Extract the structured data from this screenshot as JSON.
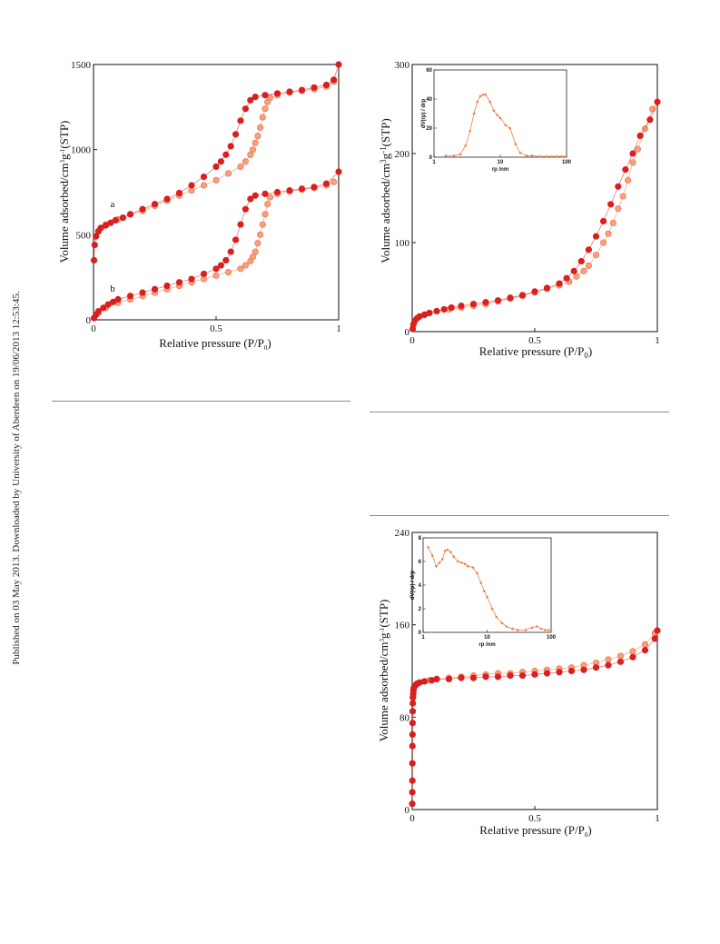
{
  "side_note": "Published on 03 May 2013. Downloaded by University of Aberdeen on 19/06/2013 12:53:45.",
  "colors": {
    "adsorption": "#d91f1f",
    "desorption": "#ef7a55",
    "inset": "#f08050",
    "axis": "#222222",
    "rule": "#8a8a8a"
  },
  "chart_data": [
    {
      "type": "scatter",
      "xlabel": "Relative pressure (P/P0)",
      "ylabel": "Volume adsorbed/cm3g-1(STP)",
      "xlim": [
        0,
        1
      ],
      "ylim": [
        0,
        1500
      ],
      "xticks": [
        "0",
        "0.5",
        "1"
      ],
      "yticks": [
        "0",
        "500",
        "1000",
        "1500"
      ],
      "annotations": [
        "a",
        "b"
      ],
      "series": [
        {
          "name": "a",
          "branch": "adsorption",
          "x": [
            0.002,
            0.005,
            0.01,
            0.02,
            0.03,
            0.05,
            0.07,
            0.09,
            0.12,
            0.15,
            0.2,
            0.25,
            0.3,
            0.35,
            0.4,
            0.45,
            0.5,
            0.52,
            0.54,
            0.56,
            0.58,
            0.6,
            0.62,
            0.64,
            0.66,
            0.7,
            0.75,
            0.8,
            0.85,
            0.9,
            0.95,
            0.98,
            1.0
          ],
          "y": [
            350,
            440,
            490,
            520,
            540,
            555,
            570,
            585,
            600,
            620,
            650,
            680,
            710,
            745,
            790,
            840,
            900,
            930,
            970,
            1020,
            1090,
            1170,
            1240,
            1290,
            1310,
            1320,
            1330,
            1340,
            1350,
            1365,
            1380,
            1410,
            1500
          ]
        },
        {
          "name": "a",
          "branch": "desorption",
          "x": [
            0.98,
            0.95,
            0.9,
            0.85,
            0.8,
            0.75,
            0.72,
            0.71,
            0.7,
            0.69,
            0.68,
            0.67,
            0.66,
            0.65,
            0.64,
            0.62,
            0.6,
            0.55,
            0.5,
            0.45,
            0.4,
            0.35,
            0.3,
            0.25,
            0.2,
            0.15,
            0.1,
            0.05,
            0.02
          ],
          "y": [
            1400,
            1370,
            1355,
            1345,
            1335,
            1320,
            1305,
            1280,
            1240,
            1190,
            1130,
            1080,
            1040,
            1000,
            970,
            930,
            900,
            860,
            820,
            790,
            760,
            730,
            700,
            670,
            640,
            620,
            590,
            560,
            520
          ]
        },
        {
          "name": "b",
          "branch": "adsorption",
          "x": [
            0.002,
            0.01,
            0.02,
            0.04,
            0.06,
            0.08,
            0.1,
            0.15,
            0.2,
            0.25,
            0.3,
            0.35,
            0.4,
            0.45,
            0.5,
            0.52,
            0.54,
            0.56,
            0.58,
            0.6,
            0.62,
            0.64,
            0.66,
            0.7,
            0.75,
            0.8,
            0.85,
            0.9,
            0.95,
            1.0
          ],
          "y": [
            10,
            30,
            50,
            70,
            90,
            105,
            120,
            140,
            160,
            180,
            200,
            220,
            240,
            270,
            300,
            320,
            350,
            400,
            470,
            560,
            650,
            710,
            730,
            740,
            750,
            760,
            770,
            780,
            800,
            870
          ]
        },
        {
          "name": "b",
          "branch": "desorption",
          "x": [
            0.98,
            0.95,
            0.9,
            0.85,
            0.8,
            0.75,
            0.72,
            0.71,
            0.7,
            0.69,
            0.68,
            0.67,
            0.66,
            0.65,
            0.64,
            0.62,
            0.6,
            0.55,
            0.5,
            0.45,
            0.4,
            0.35,
            0.3,
            0.25,
            0.2,
            0.15,
            0.1,
            0.05,
            0.02
          ],
          "y": [
            810,
            790,
            775,
            765,
            755,
            740,
            720,
            680,
            620,
            560,
            500,
            450,
            400,
            370,
            345,
            320,
            300,
            280,
            260,
            240,
            220,
            200,
            180,
            160,
            140,
            120,
            100,
            70,
            40
          ]
        }
      ]
    },
    {
      "type": "scatter",
      "xlabel": "Relative pressure (P/P0)",
      "ylabel": "Volume adsorbed/cm3g-1(STP)",
      "xlim": [
        0,
        1
      ],
      "ylim": [
        0,
        300
      ],
      "xticks": [
        "0",
        "0.5",
        "1"
      ],
      "yticks": [
        "0",
        "100",
        "200",
        "300"
      ],
      "series": [
        {
          "branch": "adsorption",
          "x": [
            0.002,
            0.005,
            0.01,
            0.02,
            0.03,
            0.05,
            0.07,
            0.1,
            0.13,
            0.16,
            0.2,
            0.25,
            0.3,
            0.35,
            0.4,
            0.45,
            0.5,
            0.55,
            0.6,
            0.63,
            0.66,
            0.69,
            0.72,
            0.75,
            0.78,
            0.81,
            0.84,
            0.87,
            0.9,
            0.93,
            0.97,
            1.0
          ],
          "y": [
            3,
            8,
            12,
            15,
            17,
            19,
            21,
            23,
            25,
            27,
            29,
            31,
            33,
            35,
            38,
            41,
            45,
            49,
            54,
            60,
            68,
            79,
            92,
            107,
            124,
            143,
            163,
            182,
            200,
            220,
            238,
            258
          ]
        },
        {
          "branch": "desorption",
          "x": [
            0.98,
            0.95,
            0.92,
            0.9,
            0.88,
            0.86,
            0.84,
            0.82,
            0.8,
            0.78,
            0.75,
            0.72,
            0.7,
            0.67,
            0.64,
            0.6,
            0.55,
            0.5,
            0.45,
            0.4,
            0.35,
            0.3,
            0.25,
            0.2,
            0.15,
            0.1,
            0.07,
            0.05,
            0.03
          ],
          "y": [
            250,
            228,
            205,
            190,
            170,
            152,
            138,
            122,
            110,
            100,
            86,
            74,
            68,
            62,
            56,
            52,
            48,
            44,
            40,
            37,
            34,
            31,
            29,
            27,
            25,
            23,
            21,
            19,
            17
          ]
        }
      ],
      "inset": {
        "type": "line",
        "xlabel": "rp /nm",
        "ylabel": "dV(rp) / drp",
        "xscale": "log",
        "xlim": [
          1,
          100
        ],
        "ylim": [
          0,
          60
        ],
        "xticks": [
          "1",
          "10",
          "100"
        ],
        "yticks": [
          "0",
          "20",
          "40",
          "60"
        ],
        "x": [
          1.5,
          2,
          2.5,
          3,
          3.5,
          4,
          4.5,
          5,
          5.5,
          6,
          7,
          8,
          9,
          10,
          12,
          14,
          17,
          20,
          25,
          30,
          40,
          50,
          60,
          70,
          85,
          100
        ],
        "y": [
          1,
          1,
          2,
          8,
          18,
          30,
          38,
          42,
          43,
          43,
          38,
          32,
          29,
          27,
          22,
          20,
          9,
          3,
          1,
          1,
          0.5,
          0.5,
          0.5,
          0.5,
          0.5,
          0.5
        ]
      }
    },
    {
      "type": "scatter",
      "xlabel": "Relative pressure (P/P0)",
      "ylabel": "Volume adsorbed/cm3g-1(STP)",
      "xlim": [
        0,
        1
      ],
      "ylim": [
        0,
        240
      ],
      "xticks": [
        "0",
        "0.5",
        "1"
      ],
      "yticks": [
        "0",
        "80",
        "160",
        "240"
      ],
      "series": [
        {
          "branch": "adsorption",
          "x": [
            0.0002,
            0.0004,
            0.0006,
            0.0008,
            0.001,
            0.0012,
            0.0015,
            0.002,
            0.0025,
            0.003,
            0.004,
            0.005,
            0.006,
            0.008,
            0.01,
            0.015,
            0.02,
            0.03,
            0.05,
            0.08,
            0.1,
            0.15,
            0.2,
            0.25,
            0.3,
            0.35,
            0.4,
            0.45,
            0.5,
            0.55,
            0.6,
            0.65,
            0.7,
            0.75,
            0.8,
            0.85,
            0.9,
            0.95,
            0.99,
            1.0
          ],
          "y": [
            5,
            15,
            25,
            40,
            55,
            65,
            75,
            85,
            92,
            97,
            100,
            103,
            105,
            106,
            107,
            108,
            109,
            110,
            111,
            112,
            113,
            113,
            114,
            114,
            115,
            115,
            116,
            116,
            117,
            118,
            119,
            120,
            121,
            123,
            125,
            128,
            132,
            138,
            148,
            155
          ]
        },
        {
          "branch": "desorption",
          "x": [
            0.99,
            0.95,
            0.9,
            0.85,
            0.8,
            0.75,
            0.7,
            0.65,
            0.6,
            0.55,
            0.5,
            0.45,
            0.4,
            0.35,
            0.3,
            0.25,
            0.2,
            0.15,
            0.1,
            0.07,
            0.05,
            0.03,
            0.02
          ],
          "y": [
            153,
            143,
            137,
            133,
            130,
            127,
            125,
            123,
            122,
            121,
            120,
            119,
            118,
            118,
            117,
            116,
            115,
            114,
            113,
            112,
            111,
            110,
            109
          ]
        }
      ],
      "inset": {
        "type": "line",
        "xlabel": "rp /nm",
        "ylabel": "dV(rp) / drp",
        "xscale": "log",
        "xlim": [
          1,
          100
        ],
        "ylim": [
          0,
          8
        ],
        "xticks": [
          "1",
          "10",
          "100"
        ],
        "yticks": [
          "0",
          "2",
          "4",
          "6",
          "8"
        ],
        "x": [
          1.2,
          1.4,
          1.6,
          1.8,
          2,
          2.2,
          2.4,
          2.7,
          3,
          3.5,
          4,
          4.5,
          5,
          6,
          7,
          8,
          9,
          10,
          12,
          14,
          17,
          20,
          25,
          30,
          40,
          50,
          60,
          70,
          80,
          90,
          100
        ],
        "y": [
          7.2,
          6.5,
          5.6,
          5.9,
          6.2,
          6.9,
          7,
          6.8,
          6.4,
          6,
          5.9,
          5.8,
          5.6,
          5.5,
          5,
          4.2,
          3.5,
          3,
          2,
          1.3,
          0.8,
          0.5,
          0.3,
          0.2,
          0.2,
          0.4,
          0.5,
          0.3,
          0.2,
          0.2,
          0.2
        ]
      }
    }
  ]
}
